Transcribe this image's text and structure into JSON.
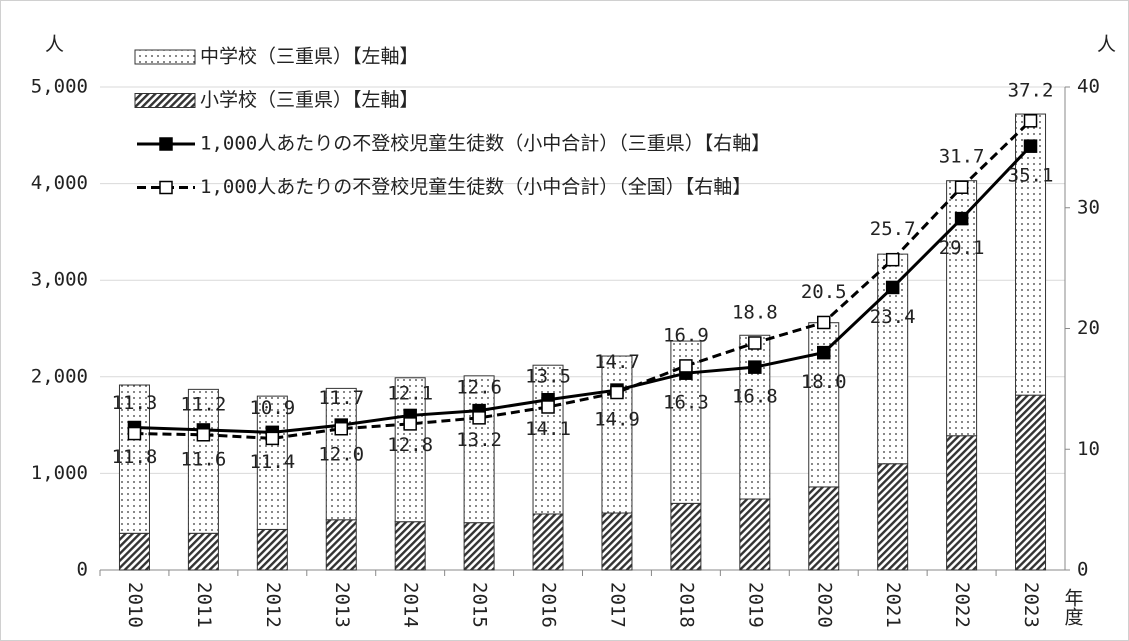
{
  "chart_data": {
    "type": "bar",
    "y_unit": "人",
    "y2_unit": "人",
    "x_unit": "年度",
    "categories": [
      "2010",
      "2011",
      "2012",
      "2013",
      "2014",
      "2015",
      "2016",
      "2017",
      "2018",
      "2019",
      "2020",
      "2021",
      "2022",
      "2023"
    ],
    "series": [
      {
        "name": "小学校（三重県）【左軸】",
        "type": "bar",
        "color": "#333333",
        "pattern": "hatch",
        "values": [
          380,
          380,
          420,
          520,
          500,
          490,
          580,
          590,
          690,
          735,
          860,
          1100,
          1390,
          1810
        ]
      },
      {
        "name": "中学校（三重県）【左軸】",
        "type": "bar",
        "color": "#333333",
        "pattern": "dots",
        "values": [
          1535,
          1490,
          1380,
          1360,
          1490,
          1520,
          1540,
          1625,
          1680,
          1695,
          1700,
          2170,
          2640,
          2910
        ]
      },
      {
        "name": "1,000人あたりの不登校児童生徒数（小中合計）（三重県）【右軸】",
        "type": "line",
        "axis": "y2",
        "color": "#000000",
        "dashed": false,
        "marker": "filled",
        "values": [
          11.8,
          11.6,
          11.4,
          12.0,
          12.8,
          13.2,
          14.1,
          14.9,
          16.3,
          16.8,
          18.0,
          23.4,
          29.1,
          35.1
        ],
        "value_labels": [
          "11.8",
          "11.6",
          "11.4",
          "12.0",
          "12.8",
          "13.2",
          "14.1",
          "14.9",
          "16.3",
          "16.8",
          "18.0",
          "23.4",
          "29.1",
          "35.1"
        ]
      },
      {
        "name": "1,000人あたりの不登校児童生徒数（小中合計）（全国）【右軸】",
        "type": "line",
        "axis": "y2",
        "color": "#000000",
        "dashed": true,
        "marker": "open",
        "values": [
          11.3,
          11.2,
          10.9,
          11.7,
          12.1,
          12.6,
          13.5,
          14.7,
          16.9,
          18.8,
          20.5,
          25.7,
          31.7,
          37.2
        ],
        "value_labels": [
          "11.3",
          "11.2",
          "10.9",
          "11.7",
          "12.1",
          "12.6",
          "13.5",
          "14.7",
          "16.9",
          "18.8",
          "20.5",
          "25.7",
          "31.7",
          "37.2"
        ]
      }
    ],
    "legend_order": [
      1,
      0,
      2,
      3
    ],
    "ylim": [
      0,
      5000
    ],
    "yticks": [
      0,
      {
        "value": 1000,
        "label": "1,000"
      },
      {
        "value": 2000,
        "label": "2,000"
      },
      {
        "value": 3000,
        "label": "3,000"
      },
      {
        "value": 4000,
        "label": "4,000"
      },
      {
        "value": 5000,
        "label": "5,000"
      }
    ],
    "y2lim": [
      0,
      40
    ],
    "y2ticks": [
      0,
      10,
      20,
      30,
      40
    ],
    "grid": true
  }
}
